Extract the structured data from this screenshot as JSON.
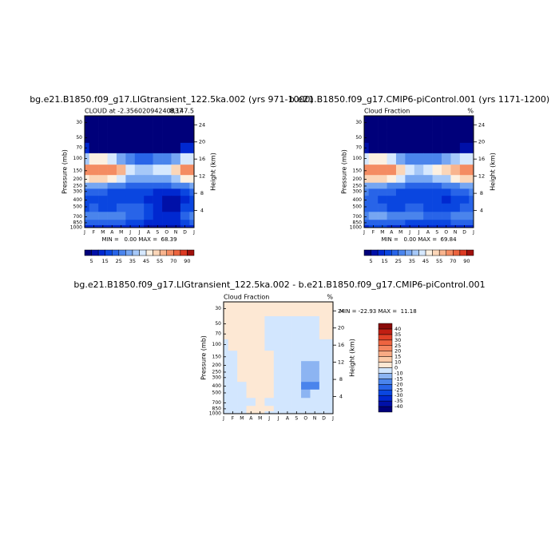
{
  "chart_data": [
    {
      "type": "contour",
      "title": "bg.e21.B1850.f09_g17.LIGtransient_122.5ka.002 (yrs 971-1000)",
      "subtitle": "CLOUD at -2.35602094240837",
      "subtitle_right": "8,147.5",
      "annotation": "MIN =   0.00 MAX =  68.39",
      "ylabel": "Pressure (mb)",
      "y2label": "Height (km)",
      "categories": [
        "J",
        "F",
        "M",
        "A",
        "M",
        "J",
        "J",
        "A",
        "S",
        "O",
        "N",
        "D",
        "J"
      ],
      "y": [
        30,
        50,
        70,
        100,
        150,
        200,
        250,
        300,
        400,
        500,
        700,
        850,
        1000
      ],
      "ylog": true,
      "ylim": [
        1000,
        24
      ],
      "yticks": [
        30,
        50,
        70,
        100,
        150,
        200,
        250,
        300,
        400,
        500,
        700,
        850,
        1000
      ],
      "y2lim": [
        0,
        26.1
      ],
      "y2ticks": [
        4,
        8,
        12,
        16,
        20,
        24
      ],
      "z": [
        [
          1,
          1,
          1,
          1,
          1,
          1,
          1,
          1,
          1,
          1,
          1,
          1,
          1
        ],
        [
          1,
          1,
          1,
          1,
          1,
          1,
          1,
          1,
          1,
          1,
          1,
          1,
          1
        ],
        [
          10,
          3,
          3,
          3,
          3,
          3,
          3,
          3,
          3,
          3,
          3,
          10,
          10
        ],
        [
          35,
          45,
          45,
          40,
          30,
          25,
          22,
          22,
          25,
          28,
          30,
          40,
          40
        ],
        [
          60,
          65,
          65,
          62,
          55,
          42,
          38,
          38,
          40,
          42,
          50,
          60,
          60
        ],
        [
          45,
          50,
          50,
          45,
          40,
          32,
          30,
          30,
          32,
          33,
          38,
          45,
          45
        ],
        [
          30,
          32,
          30,
          28,
          25,
          22,
          22,
          22,
          22,
          22,
          25,
          28,
          30
        ],
        [
          22,
          22,
          20,
          18,
          18,
          18,
          17,
          16,
          14,
          12,
          12,
          18,
          22
        ],
        [
          18,
          18,
          16,
          15,
          16,
          18,
          17,
          14,
          12,
          8,
          8,
          14,
          18
        ],
        [
          18,
          20,
          18,
          18,
          20,
          22,
          20,
          16,
          12,
          8,
          8,
          15,
          18
        ],
        [
          25,
          28,
          28,
          25,
          25,
          24,
          22,
          18,
          14,
          10,
          12,
          20,
          25
        ],
        [
          20,
          22,
          22,
          20,
          20,
          18,
          16,
          14,
          12,
          10,
          12,
          18,
          20
        ],
        [
          12,
          14,
          14,
          12,
          12,
          10,
          10,
          8,
          8,
          6,
          8,
          10,
          12
        ]
      ],
      "levels": [
        5,
        10,
        15,
        20,
        25,
        30,
        35,
        40,
        45,
        50,
        55,
        60,
        70,
        80,
        90
      ],
      "colors": [
        "#00007a",
        "#0010a8",
        "#0028d0",
        "#0a46e0",
        "#2864e8",
        "#4a84ec",
        "#76a6f2",
        "#a6c8f8",
        "#d6e8fe",
        "#fdf0e0",
        "#fbd6b8",
        "#f8b48e",
        "#f48c62",
        "#ec643e",
        "#dc3a22",
        "#a0100c"
      ]
    },
    {
      "type": "contour",
      "title": "b.e21.B1850.f09_g17.CMIP6-piControl.001 (yrs 1171-1200)",
      "subtitle": "Cloud Fraction",
      "subtitle_right": "%",
      "annotation": "MIN =   0.00 MAX =  69.84",
      "ylabel": "Pressure (mb)",
      "y2label": "Height (km)",
      "categories": [
        "J",
        "F",
        "M",
        "A",
        "M",
        "J",
        "J",
        "A",
        "S",
        "O",
        "N",
        "D",
        "J"
      ],
      "y": [
        30,
        50,
        70,
        100,
        150,
        200,
        250,
        300,
        400,
        500,
        700,
        850,
        1000
      ],
      "ylog": true,
      "ylim": [
        1000,
        24
      ],
      "yticks": [
        30,
        50,
        70,
        100,
        150,
        200,
        250,
        300,
        400,
        500,
        700,
        850,
        1000
      ],
      "y2lim": [
        0,
        26.1
      ],
      "y2ticks": [
        4,
        8,
        12,
        16,
        20,
        24
      ],
      "z": [
        [
          1,
          1,
          1,
          1,
          1,
          1,
          1,
          1,
          1,
          1,
          1,
          1,
          1
        ],
        [
          1,
          1,
          1,
          1,
          1,
          1,
          1,
          1,
          1,
          1,
          1,
          1,
          1
        ],
        [
          8,
          3,
          3,
          3,
          3,
          3,
          3,
          3,
          3,
          3,
          3,
          8,
          8
        ],
        [
          40,
          45,
          45,
          40,
          32,
          25,
          25,
          25,
          28,
          32,
          38,
          42,
          40
        ],
        [
          65,
          68,
          65,
          60,
          50,
          40,
          38,
          40,
          45,
          50,
          58,
          65,
          65
        ],
        [
          50,
          52,
          50,
          45,
          40,
          32,
          30,
          32,
          35,
          38,
          45,
          50,
          50
        ],
        [
          32,
          32,
          30,
          28,
          25,
          22,
          22,
          22,
          24,
          25,
          28,
          32,
          32
        ],
        [
          25,
          24,
          22,
          20,
          18,
          17,
          18,
          18,
          18,
          18,
          20,
          22,
          25
        ],
        [
          20,
          20,
          18,
          16,
          15,
          16,
          17,
          16,
          15,
          14,
          16,
          18,
          20
        ],
        [
          20,
          22,
          20,
          18,
          18,
          20,
          20,
          18,
          16,
          16,
          18,
          20,
          20
        ],
        [
          28,
          30,
          30,
          28,
          26,
          25,
          25,
          22,
          20,
          22,
          25,
          28,
          28
        ],
        [
          22,
          24,
          24,
          22,
          20,
          18,
          18,
          16,
          16,
          18,
          20,
          22,
          22
        ],
        [
          14,
          15,
          15,
          14,
          12,
          10,
          10,
          10,
          10,
          10,
          12,
          14,
          14
        ]
      ],
      "levels": [
        5,
        10,
        15,
        20,
        25,
        30,
        35,
        40,
        45,
        50,
        55,
        60,
        70,
        80,
        90
      ],
      "colors": [
        "#00007a",
        "#0010a8",
        "#0028d0",
        "#0a46e0",
        "#2864e8",
        "#4a84ec",
        "#76a6f2",
        "#a6c8f8",
        "#d6e8fe",
        "#fdf0e0",
        "#fbd6b8",
        "#f8b48e",
        "#f48c62",
        "#ec643e",
        "#dc3a22",
        "#a0100c"
      ]
    },
    {
      "type": "contour",
      "title": "bg.e21.B1850.f09_g17.LIGtransient_122.5ka.002 - b.e21.B1850.f09_g17.CMIP6-piControl.001",
      "subtitle": "Cloud Fraction",
      "subtitle_right": "%",
      "annotation": "MIN = -22.93 MAX =  11.18",
      "ylabel": "Pressure (mb)",
      "y2label": "Height (km)",
      "categories": [
        "J",
        "F",
        "M",
        "A",
        "M",
        "J",
        "J",
        "A",
        "S",
        "O",
        "N",
        "D",
        "J"
      ],
      "y": [
        30,
        50,
        70,
        100,
        150,
        200,
        250,
        300,
        400,
        500,
        700,
        850,
        1000
      ],
      "ylog": true,
      "ylim": [
        1000,
        24
      ],
      "yticks": [
        30,
        50,
        70,
        100,
        150,
        200,
        250,
        300,
        400,
        500,
        700,
        850,
        1000
      ],
      "y2lim": [
        0,
        26.1
      ],
      "y2ticks": [
        4,
        8,
        12,
        16,
        20,
        24
      ],
      "z": [
        [
          2,
          2,
          2,
          2,
          2,
          2,
          2,
          2,
          2,
          2,
          2,
          2,
          2
        ],
        [
          2,
          2,
          2,
          2,
          2,
          -2,
          -2,
          -2,
          -2,
          -2,
          -2,
          2,
          2
        ],
        [
          2,
          2,
          2,
          2,
          2,
          -2,
          -2,
          -2,
          -2,
          -2,
          -2,
          2,
          2
        ],
        [
          -3,
          2,
          2,
          2,
          2,
          -2,
          -2,
          -2,
          -2,
          -2,
          -2,
          -2,
          -3
        ],
        [
          -5,
          -2,
          2,
          4,
          6,
          2,
          -2,
          -2,
          -5,
          -8,
          -8,
          -5,
          -5
        ],
        [
          -5,
          -2,
          2,
          3,
          5,
          3,
          -2,
          -3,
          -8,
          -12,
          -12,
          -5,
          -5
        ],
        [
          -8,
          -2,
          2,
          2,
          2,
          2,
          -2,
          -3,
          -8,
          -15,
          -15,
          -8,
          -8
        ],
        [
          -8,
          -2,
          2,
          2,
          2,
          2,
          -2,
          -3,
          -8,
          -15,
          -15,
          -5,
          -8
        ],
        [
          -10,
          -2,
          -2,
          2,
          2,
          2,
          -2,
          -3,
          -8,
          -18,
          -18,
          -5,
          -10
        ],
        [
          -5,
          -2,
          -2,
          2,
          2,
          2,
          -2,
          -3,
          -8,
          -12,
          -10,
          -5,
          -5
        ],
        [
          -2,
          -2,
          -2,
          -2,
          2,
          -2,
          -2,
          -2,
          -5,
          -8,
          -5,
          -2,
          -2
        ],
        [
          -2,
          -2,
          -2,
          2,
          2,
          2,
          -2,
          -2,
          -5,
          -5,
          -2,
          -2,
          -2
        ],
        [
          -2,
          -2,
          -2,
          2,
          2,
          -2,
          -2,
          -2,
          -2,
          -2,
          -2,
          -2,
          -2
        ]
      ],
      "levels": [
        -40,
        -35,
        -30,
        -25,
        -20,
        -15,
        -10,
        0,
        10,
        15,
        20,
        25,
        30,
        35,
        40
      ],
      "colors": [
        "#00007a",
        "#0010a8",
        "#0028d0",
        "#0a46e0",
        "#2864e8",
        "#4a84ec",
        "#8cb4f2",
        "#d2e6fe",
        "#fde8d4",
        "#fbcaa8",
        "#f8aa84",
        "#f48660",
        "#ee6440",
        "#e04026",
        "#c01e12",
        "#8a0a08"
      ]
    }
  ]
}
